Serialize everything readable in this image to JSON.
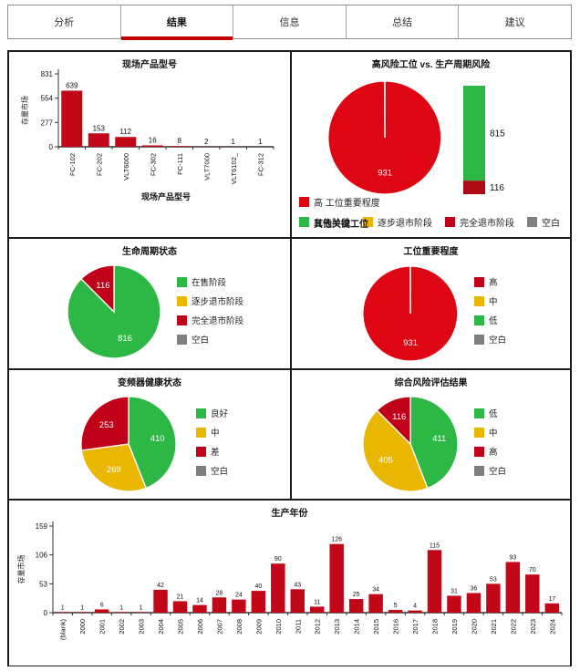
{
  "tabs": [
    {
      "label": "分析",
      "selected": false
    },
    {
      "label": "结果",
      "selected": true
    },
    {
      "label": "信息",
      "selected": false
    },
    {
      "label": "总结",
      "selected": false
    },
    {
      "label": "建议",
      "selected": false
    }
  ],
  "colors": {
    "bright_red": "#DE0613",
    "crimson": "#C00018",
    "dark_red": "#AD0A16",
    "bar_red": "#C20818",
    "green": "#2DB845",
    "yellow": "#EAB700",
    "gray": "#7F7F7F",
    "white": "#FFFFFF",
    "tab_underline": "#C00000"
  },
  "chart_data": [
    {
      "id": "product-models",
      "type": "bar",
      "title": "现场产品型号",
      "xlabel": "现场产品型号",
      "ylabel": "存量市场",
      "yticks": [
        0,
        277,
        554,
        831
      ],
      "ylim": [
        0,
        831
      ],
      "categories": [
        "FC-102",
        "FC-202",
        "VLT6000",
        "FC-302",
        "FC-111",
        "VLT7000",
        "VLT6102_",
        "FC-312"
      ],
      "values": [
        639,
        153,
        112,
        16,
        8,
        2,
        1,
        1
      ],
      "bar_color": "bar_red",
      "grid": false
    },
    {
      "id": "risk-combo",
      "type": "pie",
      "title": "高风险工位 vs. 生产周期风险",
      "slices": [
        {
          "label": "高 工位重要程度",
          "value": 931,
          "color": "bright_red",
          "show_label": true
        },
        {
          "label": "空白",
          "value": 1,
          "color": "white",
          "show_label": false
        }
      ],
      "stacked_bar": [
        {
          "label": "815",
          "value": 815,
          "color": "green"
        },
        {
          "label": "116",
          "value": 116,
          "color": "dark_red"
        }
      ],
      "legend_rows": [
        [
          {
            "color": "bright_red",
            "label": "高 工位重要程度"
          }
        ],
        [
          {
            "color": "green",
            "label": "在售阶段"
          },
          {
            "color": "yellow",
            "label": "逐步退市阶段"
          },
          {
            "color": "crimson",
            "label": "完全退市阶段"
          },
          {
            "color": "gray",
            "label": "空白"
          }
        ]
      ],
      "legend_overlay_text": "其他关键工位"
    },
    {
      "id": "lifecycle",
      "type": "pie",
      "title": "生命周期状态",
      "slices": [
        {
          "label": "在售阶段",
          "value": 816,
          "color": "green",
          "show_label": true
        },
        {
          "label": "完全退市阶段",
          "value": 116,
          "color": "crimson",
          "show_label": true
        }
      ],
      "legend": [
        {
          "color": "green",
          "label": "在售阶段"
        },
        {
          "color": "yellow",
          "label": "逐步退市阶段"
        },
        {
          "color": "crimson",
          "label": "完全退市阶段"
        },
        {
          "color": "gray",
          "label": "空白"
        }
      ]
    },
    {
      "id": "station-importance",
      "type": "pie",
      "title": "工位重要程度",
      "slices": [
        {
          "label": "高",
          "value": 931,
          "color": "bright_red",
          "show_label": true
        },
        {
          "label": "空白",
          "value": 1,
          "color": "white",
          "show_label": false
        }
      ],
      "legend": [
        {
          "color": "crimson",
          "label": "高"
        },
        {
          "color": "yellow",
          "label": "中"
        },
        {
          "color": "green",
          "label": "低"
        },
        {
          "color": "gray",
          "label": "空白"
        }
      ]
    },
    {
      "id": "drive-health",
      "type": "pie",
      "title": "变频器健康状态",
      "slices": [
        {
          "label": "良好",
          "value": 410,
          "color": "green",
          "show_label": true
        },
        {
          "label": "中",
          "value": 269,
          "color": "yellow",
          "show_label": true
        },
        {
          "label": "差",
          "value": 253,
          "color": "crimson",
          "show_label": true
        }
      ],
      "legend": [
        {
          "color": "green",
          "label": "良好"
        },
        {
          "color": "yellow",
          "label": "中"
        },
        {
          "color": "crimson",
          "label": "差"
        },
        {
          "color": "gray",
          "label": "空白"
        }
      ]
    },
    {
      "id": "risk-result",
      "type": "pie",
      "title": "综合风险评估结果",
      "slices": [
        {
          "label": "低",
          "value": 411,
          "color": "green",
          "show_label": true
        },
        {
          "label": "中",
          "value": 405,
          "color": "yellow",
          "show_label": true
        },
        {
          "label": "高",
          "value": 116,
          "color": "crimson",
          "show_label": true
        }
      ],
      "legend": [
        {
          "color": "green",
          "label": "低"
        },
        {
          "color": "yellow",
          "label": "中"
        },
        {
          "color": "crimson",
          "label": "高"
        },
        {
          "color": "gray",
          "label": "空白"
        }
      ]
    },
    {
      "id": "production-year",
      "type": "bar",
      "title": "生产年份",
      "xlabel": "",
      "ylabel": "存量市场",
      "yticks": [
        0,
        53,
        106,
        159
      ],
      "ylim": [
        0,
        159
      ],
      "categories": [
        "(blank)",
        "2000",
        "2001",
        "2002",
        "2003",
        "2004",
        "2005",
        "2006",
        "2007",
        "2008",
        "2009",
        "2010",
        "2011",
        "2012",
        "2013",
        "2014",
        "2015",
        "2016",
        "2017",
        "2018",
        "2019",
        "2020",
        "2021",
        "2022",
        "2023",
        "2024"
      ],
      "values": [
        1,
        1,
        6,
        1,
        1,
        42,
        21,
        14,
        28,
        24,
        40,
        90,
        43,
        11,
        126,
        25,
        34,
        5,
        4,
        115,
        31,
        36,
        53,
        93,
        70,
        17
      ],
      "bar_color": "bar_red",
      "grid": false
    }
  ]
}
